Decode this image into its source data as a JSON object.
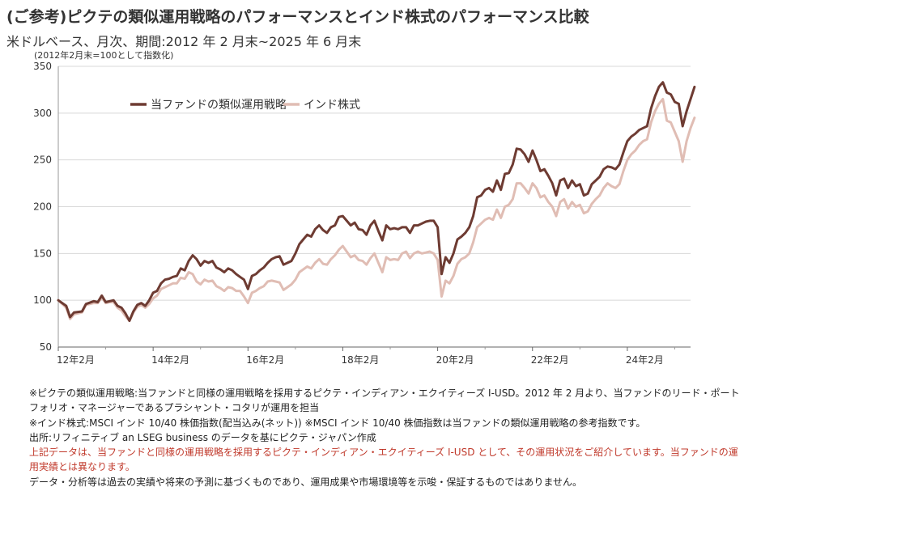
{
  "header": {
    "title": "(ご参考)ピクテの類似運用戦略のパフォーマンスとインド株式のパフォーマンス比較",
    "subtitle": "米ドルベース、月次、期間:2012 年 2 月末~2025 年 6 月末",
    "index_note": "(2012年2月末=100として指数化)"
  },
  "chart_data": {
    "type": "line",
    "title": "",
    "xlabel": "",
    "ylabel": "",
    "ylim": [
      50,
      350
    ],
    "yticks": [
      50,
      100,
      150,
      200,
      250,
      300,
      350
    ],
    "xtick_labels": [
      "12年2月",
      "14年2月",
      "16年2月",
      "18年2月",
      "20年2月",
      "22年2月",
      "24年2月"
    ],
    "xtick_months": [
      0,
      24,
      48,
      72,
      96,
      120,
      144
    ],
    "x_range_months": [
      0,
      160
    ],
    "grid": "horizontal",
    "legend_position": "top-left",
    "series": [
      {
        "name": "当ファンドの類似運用戦略",
        "color": "#6e3b32",
        "points": [
          [
            0,
            100
          ],
          [
            2,
            94
          ],
          [
            3,
            82
          ],
          [
            4,
            87
          ],
          [
            6,
            88
          ],
          [
            7,
            96
          ],
          [
            9,
            99
          ],
          [
            10,
            98
          ],
          [
            11,
            105
          ],
          [
            12,
            98
          ],
          [
            13,
            99
          ],
          [
            14,
            100
          ],
          [
            15,
            94
          ],
          [
            16,
            92
          ],
          [
            17,
            86
          ],
          [
            18,
            78
          ],
          [
            19,
            88
          ],
          [
            20,
            95
          ],
          [
            21,
            97
          ],
          [
            22,
            94
          ],
          [
            23,
            100
          ],
          [
            24,
            108
          ],
          [
            25,
            110
          ],
          [
            26,
            118
          ],
          [
            27,
            122
          ],
          [
            28,
            123
          ],
          [
            29,
            125
          ],
          [
            30,
            126
          ],
          [
            31,
            134
          ],
          [
            32,
            132
          ],
          [
            33,
            142
          ],
          [
            34,
            148
          ],
          [
            35,
            144
          ],
          [
            36,
            137
          ],
          [
            37,
            142
          ],
          [
            38,
            140
          ],
          [
            39,
            142
          ],
          [
            40,
            135
          ],
          [
            41,
            133
          ],
          [
            42,
            130
          ],
          [
            43,
            134
          ],
          [
            44,
            132
          ],
          [
            45,
            128
          ],
          [
            46,
            125
          ],
          [
            47,
            122
          ],
          [
            48,
            112
          ],
          [
            49,
            126
          ],
          [
            50,
            128
          ],
          [
            51,
            132
          ],
          [
            52,
            135
          ],
          [
            53,
            140
          ],
          [
            54,
            144
          ],
          [
            55,
            146
          ],
          [
            56,
            147
          ],
          [
            57,
            138
          ],
          [
            58,
            140
          ],
          [
            59,
            142
          ],
          [
            60,
            150
          ],
          [
            61,
            160
          ],
          [
            62,
            165
          ],
          [
            63,
            170
          ],
          [
            64,
            168
          ],
          [
            65,
            176
          ],
          [
            66,
            180
          ],
          [
            67,
            175
          ],
          [
            68,
            172
          ],
          [
            69,
            178
          ],
          [
            70,
            180
          ],
          [
            71,
            189
          ],
          [
            72,
            190
          ],
          [
            73,
            185
          ],
          [
            74,
            180
          ],
          [
            75,
            183
          ],
          [
            76,
            176
          ],
          [
            77,
            175
          ],
          [
            78,
            170
          ],
          [
            79,
            180
          ],
          [
            80,
            185
          ],
          [
            81,
            174
          ],
          [
            82,
            164
          ],
          [
            83,
            180
          ],
          [
            84,
            176
          ],
          [
            85,
            177
          ],
          [
            86,
            176
          ],
          [
            87,
            178
          ],
          [
            88,
            178
          ],
          [
            89,
            172
          ],
          [
            90,
            180
          ],
          [
            91,
            180
          ],
          [
            92,
            182
          ],
          [
            93,
            184
          ],
          [
            94,
            185
          ],
          [
            95,
            185
          ],
          [
            96,
            178
          ],
          [
            97,
            128
          ],
          [
            98,
            146
          ],
          [
            99,
            140
          ],
          [
            100,
            150
          ],
          [
            101,
            165
          ],
          [
            102,
            168
          ],
          [
            103,
            172
          ],
          [
            104,
            178
          ],
          [
            105,
            190
          ],
          [
            106,
            210
          ],
          [
            107,
            212
          ],
          [
            108,
            218
          ],
          [
            109,
            220
          ],
          [
            110,
            216
          ],
          [
            111,
            228
          ],
          [
            112,
            218
          ],
          [
            113,
            235
          ],
          [
            114,
            236
          ],
          [
            115,
            245
          ],
          [
            116,
            262
          ],
          [
            117,
            261
          ],
          [
            118,
            256
          ],
          [
            119,
            248
          ],
          [
            120,
            260
          ],
          [
            121,
            250
          ],
          [
            122,
            238
          ],
          [
            123,
            240
          ],
          [
            124,
            233
          ],
          [
            125,
            225
          ],
          [
            126,
            212
          ],
          [
            127,
            228
          ],
          [
            128,
            230
          ],
          [
            129,
            220
          ],
          [
            130,
            228
          ],
          [
            131,
            222
          ],
          [
            132,
            224
          ],
          [
            133,
            212
          ],
          [
            134,
            214
          ],
          [
            135,
            224
          ],
          [
            136,
            228
          ],
          [
            137,
            232
          ],
          [
            138,
            240
          ],
          [
            139,
            243
          ],
          [
            140,
            242
          ],
          [
            141,
            240
          ],
          [
            142,
            245
          ],
          [
            143,
            258
          ],
          [
            144,
            270
          ],
          [
            145,
            275
          ],
          [
            146,
            278
          ],
          [
            147,
            282
          ],
          [
            148,
            284
          ],
          [
            149,
            286
          ],
          [
            150,
            305
          ],
          [
            151,
            318
          ],
          [
            152,
            328
          ],
          [
            153,
            333
          ],
          [
            154,
            322
          ],
          [
            155,
            320
          ],
          [
            156,
            312
          ],
          [
            157,
            310
          ],
          [
            158,
            286
          ],
          [
            159,
            302
          ],
          [
            160,
            315
          ],
          [
            161,
            328
          ]
        ]
      },
      {
        "name": "インド株式",
        "color": "#e0bdb4",
        "points": [
          [
            0,
            100
          ],
          [
            2,
            92
          ],
          [
            3,
            80
          ],
          [
            4,
            85
          ],
          [
            6,
            87
          ],
          [
            7,
            95
          ],
          [
            9,
            97
          ],
          [
            10,
            97
          ],
          [
            11,
            103
          ],
          [
            12,
            97
          ],
          [
            13,
            98
          ],
          [
            14,
            98
          ],
          [
            15,
            92
          ],
          [
            16,
            89
          ],
          [
            17,
            83
          ],
          [
            18,
            78
          ],
          [
            19,
            87
          ],
          [
            20,
            93
          ],
          [
            21,
            95
          ],
          [
            22,
            92
          ],
          [
            23,
            96
          ],
          [
            24,
            102
          ],
          [
            25,
            105
          ],
          [
            26,
            112
          ],
          [
            27,
            114
          ],
          [
            28,
            116
          ],
          [
            29,
            118
          ],
          [
            30,
            118
          ],
          [
            31,
            124
          ],
          [
            32,
            123
          ],
          [
            33,
            130
          ],
          [
            34,
            128
          ],
          [
            35,
            120
          ],
          [
            36,
            117
          ],
          [
            37,
            122
          ],
          [
            38,
            120
          ],
          [
            39,
            121
          ],
          [
            40,
            115
          ],
          [
            41,
            113
          ],
          [
            42,
            110
          ],
          [
            43,
            114
          ],
          [
            44,
            113
          ],
          [
            45,
            110
          ],
          [
            46,
            110
          ],
          [
            47,
            104
          ],
          [
            48,
            97
          ],
          [
            49,
            108
          ],
          [
            50,
            110
          ],
          [
            51,
            113
          ],
          [
            52,
            115
          ],
          [
            53,
            120
          ],
          [
            54,
            121
          ],
          [
            55,
            120
          ],
          [
            56,
            119
          ],
          [
            57,
            111
          ],
          [
            58,
            114
          ],
          [
            59,
            117
          ],
          [
            60,
            122
          ],
          [
            61,
            130
          ],
          [
            62,
            133
          ],
          [
            63,
            136
          ],
          [
            64,
            134
          ],
          [
            65,
            140
          ],
          [
            66,
            144
          ],
          [
            67,
            139
          ],
          [
            68,
            138
          ],
          [
            69,
            144
          ],
          [
            70,
            148
          ],
          [
            71,
            154
          ],
          [
            72,
            158
          ],
          [
            73,
            152
          ],
          [
            74,
            146
          ],
          [
            75,
            148
          ],
          [
            76,
            143
          ],
          [
            77,
            142
          ],
          [
            78,
            138
          ],
          [
            79,
            145
          ],
          [
            80,
            150
          ],
          [
            81,
            140
          ],
          [
            82,
            130
          ],
          [
            83,
            146
          ],
          [
            84,
            143
          ],
          [
            85,
            144
          ],
          [
            86,
            143
          ],
          [
            87,
            150
          ],
          [
            88,
            152
          ],
          [
            89,
            145
          ],
          [
            90,
            150
          ],
          [
            91,
            152
          ],
          [
            92,
            150
          ],
          [
            93,
            151
          ],
          [
            94,
            152
          ],
          [
            95,
            150
          ],
          [
            96,
            143
          ],
          [
            97,
            104
          ],
          [
            98,
            121
          ],
          [
            99,
            118
          ],
          [
            100,
            126
          ],
          [
            101,
            139
          ],
          [
            102,
            144
          ],
          [
            103,
            146
          ],
          [
            104,
            150
          ],
          [
            105,
            162
          ],
          [
            106,
            178
          ],
          [
            107,
            182
          ],
          [
            108,
            186
          ],
          [
            109,
            188
          ],
          [
            110,
            186
          ],
          [
            111,
            197
          ],
          [
            112,
            188
          ],
          [
            113,
            200
          ],
          [
            114,
            202
          ],
          [
            115,
            208
          ],
          [
            116,
            225
          ],
          [
            117,
            225
          ],
          [
            118,
            220
          ],
          [
            119,
            214
          ],
          [
            120,
            225
          ],
          [
            121,
            220
          ],
          [
            122,
            210
          ],
          [
            123,
            212
          ],
          [
            124,
            205
          ],
          [
            125,
            200
          ],
          [
            126,
            190
          ],
          [
            127,
            205
          ],
          [
            128,
            208
          ],
          [
            129,
            198
          ],
          [
            130,
            205
          ],
          [
            131,
            200
          ],
          [
            132,
            202
          ],
          [
            133,
            193
          ],
          [
            134,
            195
          ],
          [
            135,
            203
          ],
          [
            136,
            208
          ],
          [
            137,
            212
          ],
          [
            138,
            220
          ],
          [
            139,
            225
          ],
          [
            140,
            222
          ],
          [
            141,
            220
          ],
          [
            142,
            224
          ],
          [
            143,
            238
          ],
          [
            144,
            250
          ],
          [
            145,
            256
          ],
          [
            146,
            260
          ],
          [
            147,
            266
          ],
          [
            148,
            270
          ],
          [
            149,
            272
          ],
          [
            150,
            290
          ],
          [
            151,
            302
          ],
          [
            152,
            310
          ],
          [
            153,
            315
          ],
          [
            154,
            292
          ],
          [
            155,
            290
          ],
          [
            156,
            280
          ],
          [
            157,
            270
          ],
          [
            158,
            248
          ],
          [
            159,
            270
          ],
          [
            160,
            284
          ],
          [
            161,
            295
          ]
        ]
      }
    ]
  },
  "notes": [
    {
      "text": "※ピクテの類似運用戦略:当ファンドと同様の運用戦略を採用するピクテ・インディアン・エクイティーズ I-USD。2012 年 2 月より、当ファンドのリード・ポート",
      "color": "#222222"
    },
    {
      "text": "フォリオ・マネージャーであるプラシャント・コタリが運用を担当",
      "color": "#222222"
    },
    {
      "text": "※インド株式:MSCI インド 10/40 株価指数(配当込み(ネット)) ※MSCI インド 10/40 株価指数は当ファンドの類似運用戦略の参考指数です。",
      "color": "#222222"
    },
    {
      "text": "出所:リフィニティブ an LSEG business のデータを基にピクテ・ジャパン作成",
      "color": "#222222"
    },
    {
      "text": "上記データは、当ファンドと同様の運用戦略を採用するピクテ・インディアン・エクイティーズ I-USD として、その運用状況をご紹介しています。当ファンドの運",
      "color": "#c0392b"
    },
    {
      "text": "用実績とは異なります。",
      "color": "#c0392b"
    },
    {
      "text": "データ・分析等は過去の実績や将来の予測に基づくものであり、運用成果や市場環境等を示唆・保証するものではありません。",
      "color": "#222222"
    }
  ]
}
